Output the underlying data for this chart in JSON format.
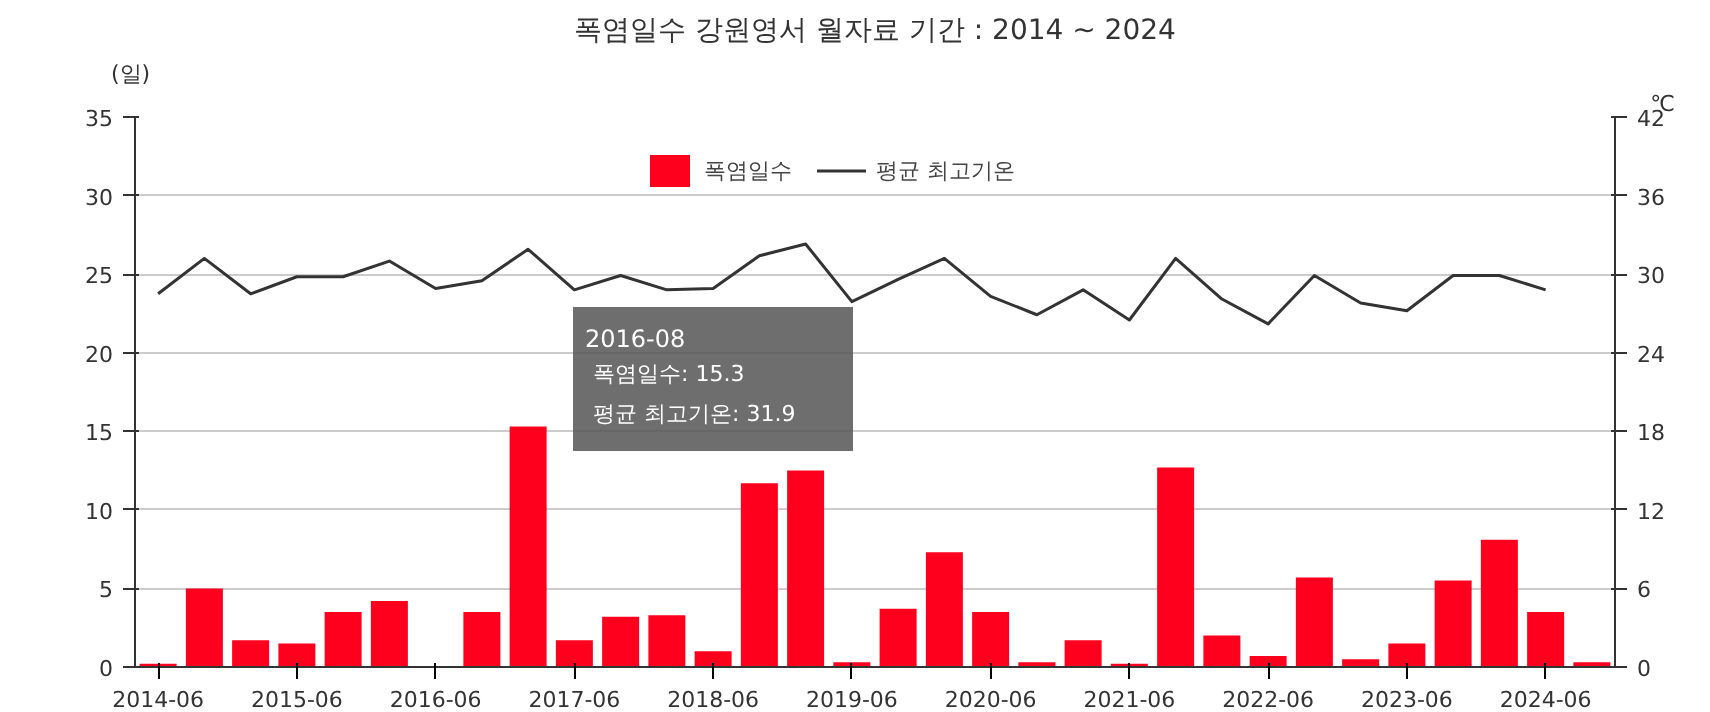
{
  "chart_data": {
    "type": "bar",
    "title": "폭염일수 강원영서 월자료 기간 : 2014 ~ 2024",
    "ylabel": "(일)",
    "y2label": "℃",
    "categories": [
      "2014-06",
      null,
      null,
      "2015-06",
      null,
      null,
      "2016-06",
      null,
      null,
      "2017-06",
      null,
      null,
      "2018-06",
      null,
      null,
      "2019-06",
      null,
      null,
      "2020-06",
      null,
      null,
      "2021-06",
      null,
      null,
      "2022-06",
      null,
      null,
      "2023-06",
      null,
      null,
      "2024-06",
      null
    ],
    "series": [
      {
        "name": "폭염일수",
        "color": "#fe001e",
        "values": [
          0.2,
          5.0,
          1.7,
          1.5,
          3.5,
          4.2,
          0,
          3.5,
          15.3,
          1.7,
          3.2,
          3.3,
          1.0,
          11.7,
          12.5,
          0.3,
          3.7,
          7.3,
          3.5,
          0.3,
          1.7,
          0.2,
          12.7,
          2.0,
          0.7,
          5.7,
          0.5,
          1.5,
          5.5,
          8.1,
          3.5,
          0.3
        ]
      },
      {
        "name": "평균 최고기온",
        "type": "line",
        "axis": "y2",
        "color": "#333333",
        "values": [
          28.5,
          31.2,
          28.5,
          29.8,
          29.8,
          31.0,
          28.9,
          29.5,
          31.9,
          28.8,
          29.9,
          28.8,
          28.9,
          31.4,
          32.3,
          27.9,
          29.6,
          31.2,
          28.3,
          26.9,
          28.8,
          26.5,
          31.2,
          28.1,
          26.2,
          29.9,
          27.8,
          27.2,
          29.9,
          29.9,
          28.8,
          null
        ]
      }
    ],
    "ylim": [
      0,
      35
    ],
    "yticks": [
      0,
      5,
      10,
      15,
      20,
      25,
      30,
      35
    ],
    "y2lim": [
      0,
      42
    ],
    "y2ticks": [
      0,
      6,
      12,
      18,
      24,
      30,
      36,
      42
    ],
    "grid": "y",
    "legend": "top",
    "marker": "none",
    "annotations": [
      "2016-08",
      "폭염일수: 15.3",
      "평균 최고기온: 31.9"
    ]
  }
}
